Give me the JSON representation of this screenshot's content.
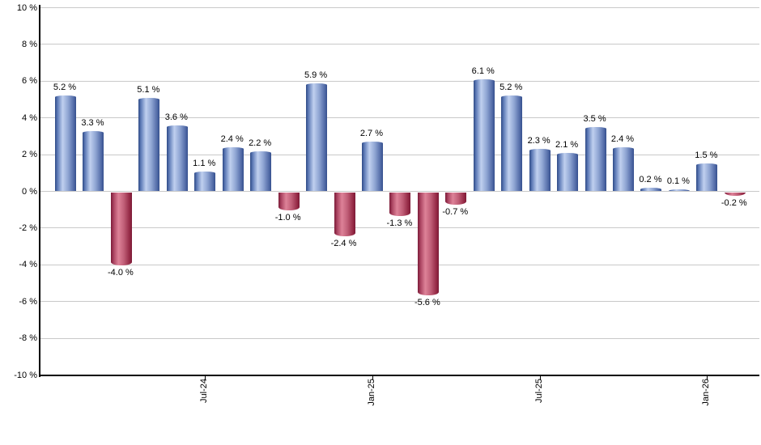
{
  "chart_data": {
    "type": "bar",
    "title": "",
    "unit": "%",
    "grid": "horizontal",
    "legend": "none",
    "ylim": [
      -10,
      10
    ],
    "bars": [
      {
        "value": 5.2,
        "label": "5.2 %"
      },
      {
        "value": 3.3,
        "label": "3.3 %"
      },
      {
        "value": -4.0,
        "label": "-4.0 %"
      },
      {
        "value": 5.1,
        "label": "5.1 %"
      },
      {
        "value": 3.6,
        "label": "3.6 %"
      },
      {
        "value": 1.1,
        "label": "1.1 %"
      },
      {
        "value": 2.4,
        "label": "2.4 %"
      },
      {
        "value": 2.2,
        "label": "2.2 %"
      },
      {
        "value": -1.0,
        "label": "-1.0 %"
      },
      {
        "value": 5.9,
        "label": "5.9 %"
      },
      {
        "value": -2.4,
        "label": "-2.4 %"
      },
      {
        "value": 2.7,
        "label": "2.7 %"
      },
      {
        "value": -1.3,
        "label": "-1.3 %"
      },
      {
        "value": -5.6,
        "label": "-5.6 %"
      },
      {
        "value": -0.7,
        "label": "-0.7 %"
      },
      {
        "value": 6.1,
        "label": "6.1 %"
      },
      {
        "value": 5.2,
        "label": "5.2 %"
      },
      {
        "value": 2.3,
        "label": "2.3 %"
      },
      {
        "value": 2.1,
        "label": "2.1 %"
      },
      {
        "value": 3.5,
        "label": "3.5 %"
      },
      {
        "value": 2.4,
        "label": "2.4 %"
      },
      {
        "value": 0.2,
        "label": "0.2 %"
      },
      {
        "value": 0.1,
        "label": "0.1 %"
      },
      {
        "value": 1.5,
        "label": "1.5 %"
      },
      {
        "value": -0.2,
        "label": "-0.2 %"
      }
    ],
    "x_ticks": [
      {
        "label": "Jul-24",
        "bar_index": 5
      },
      {
        "label": "Jan-25",
        "bar_index": 11
      },
      {
        "label": "Jul-25",
        "bar_index": 17
      },
      {
        "label": "Jan-26",
        "bar_index": 23
      }
    ],
    "y_ticks": [
      {
        "value": 10,
        "label": "10 %"
      },
      {
        "value": 8,
        "label": "8 %"
      },
      {
        "value": 6,
        "label": "6 %"
      },
      {
        "value": 4,
        "label": "4 %"
      },
      {
        "value": 2,
        "label": "2 %"
      },
      {
        "value": 0,
        "label": "0 %"
      },
      {
        "value": -2,
        "label": "-2 %"
      },
      {
        "value": -4,
        "label": "-4 %"
      },
      {
        "value": -6,
        "label": "-6 %"
      },
      {
        "value": -8,
        "label": "-8 %"
      },
      {
        "value": -10,
        "label": "-10 %"
      }
    ],
    "colors": {
      "positive_bar_dark": "#2e4a86",
      "positive_bar_light": "#c0d0ef",
      "negative_bar_dark": "#7c1b38",
      "negative_bar_light": "#dd8298",
      "gridline": "#c9c9c9",
      "axis": "#000000",
      "label_text": "#000000",
      "background": "#ffffff"
    }
  }
}
